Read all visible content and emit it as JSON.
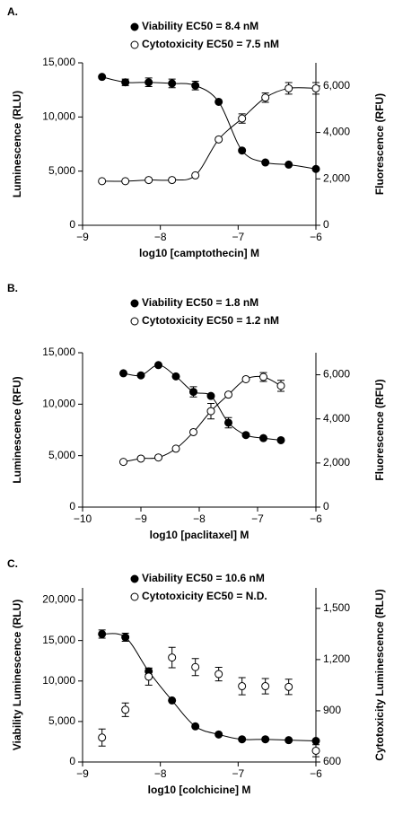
{
  "chart_data": [
    {
      "type": "scatter",
      "panel": "A.",
      "xlabel": "log10 [camptothecin] M",
      "ylabel": "Luminescence (RLU)",
      "y2label": "Fluorescence (RFU)",
      "x": [
        -8.75,
        -8.45,
        -8.15,
        -7.85,
        -7.55,
        -7.25,
        -6.95,
        -6.65,
        -6.35,
        -6.0
      ],
      "xlim": [
        -9,
        -6
      ],
      "xticks": [
        {
          "value": -9,
          "label": "−9"
        },
        {
          "value": -8,
          "label": "−8"
        },
        {
          "value": -7,
          "label": "−7"
        },
        {
          "value": -6,
          "label": "−6"
        }
      ],
      "ylim": [
        0,
        15000
      ],
      "yticks": [
        0,
        {
          "value": 5000,
          "label": "5,000"
        },
        {
          "value": 10000,
          "label": "10,000"
        },
        {
          "value": 15000,
          "label": "15,000"
        }
      ],
      "y2lim": [
        0,
        7000
      ],
      "y2ticks": [
        0,
        {
          "value": 2000,
          "label": "2,000"
        },
        {
          "value": 4000,
          "label": "4,000"
        },
        {
          "value": 6000,
          "label": "6,000"
        }
      ],
      "series": [
        {
          "name": "Viability EC50 = 8.4 nM",
          "color": "#000000",
          "marker": "filled",
          "fit": true,
          "values": [
            13700,
            13200,
            13200,
            13100,
            12900,
            11400,
            6900,
            5800,
            5600,
            5200
          ],
          "errors": [
            null,
            300,
            400,
            400,
            400,
            null,
            null,
            null,
            null,
            null
          ]
        },
        {
          "name": "Cytotoxicity EC50 = 7.5 nM",
          "color": "#000000",
          "marker": "open",
          "fit": true,
          "axis": "y2",
          "values": [
            1900,
            1900,
            1950,
            1950,
            2150,
            3700,
            4600,
            5500,
            5900,
            5900
          ],
          "errors": [
            null,
            null,
            null,
            null,
            null,
            null,
            200,
            200,
            250,
            250
          ]
        }
      ]
    },
    {
      "type": "scatter",
      "panel": "B.",
      "xlabel": "log10 [paclitaxel] M",
      "ylabel": "Luminescence (RFU)",
      "y2label": "Fluorescence (RFU)",
      "x": [
        -9.3,
        -9.0,
        -8.7,
        -8.4,
        -8.1,
        -7.8,
        -7.5,
        -7.2,
        -6.9,
        -6.6
      ],
      "xlim": [
        -10,
        -6
      ],
      "xticks": [
        {
          "value": -10,
          "label": "−10"
        },
        {
          "value": -9,
          "label": "−9"
        },
        {
          "value": -8,
          "label": "−8"
        },
        {
          "value": -7,
          "label": "−7"
        },
        {
          "value": -6,
          "label": "−6"
        }
      ],
      "ylim": [
        0,
        15000
      ],
      "yticks": [
        0,
        {
          "value": 5000,
          "label": "5,000"
        },
        {
          "value": 10000,
          "label": "10,000"
        },
        {
          "value": 15000,
          "label": "15,000"
        }
      ],
      "y2lim": [
        0,
        7000
      ],
      "y2ticks": [
        0,
        {
          "value": 2000,
          "label": "2,000"
        },
        {
          "value": 4000,
          "label": "4,000"
        },
        {
          "value": 6000,
          "label": "6,000"
        }
      ],
      "series": [
        {
          "name": "Viability EC50 = 1.8 nM",
          "color": "#000000",
          "marker": "filled",
          "fit": true,
          "values": [
            13000,
            12800,
            13800,
            12700,
            11200,
            10800,
            8200,
            7000,
            6700,
            6500
          ],
          "errors": [
            null,
            null,
            null,
            null,
            500,
            null,
            500,
            null,
            null,
            null
          ]
        },
        {
          "name": "Cytotoxicity EC50 = 1.2 nM",
          "color": "#000000",
          "marker": "open",
          "fit": true,
          "axis": "y2",
          "values": [
            2050,
            2200,
            2250,
            2650,
            3400,
            4350,
            5100,
            5800,
            5900,
            5500
          ],
          "errors": [
            null,
            null,
            null,
            null,
            null,
            350,
            null,
            null,
            200,
            250
          ]
        }
      ]
    },
    {
      "type": "scatter",
      "panel": "C.",
      "xlabel": "log10 [colchicine] M",
      "ylabel": "Viability Luminescence (RLU)",
      "y2label": "Cytotoxicity Luminescence (RLU)",
      "x": [
        -8.75,
        -8.45,
        -8.15,
        -7.85,
        -7.55,
        -7.25,
        -6.95,
        -6.65,
        -6.35,
        -6.0
      ],
      "xlim": [
        -9,
        -6
      ],
      "xticks": [
        {
          "value": -9,
          "label": "−9"
        },
        {
          "value": -8,
          "label": "−8"
        },
        {
          "value": -7,
          "label": "−7"
        },
        {
          "value": -6,
          "label": "−6"
        }
      ],
      "ylim": [
        0,
        21500
      ],
      "yticks": [
        0,
        {
          "value": 5000,
          "label": "5,000"
        },
        {
          "value": 10000,
          "label": "10,000"
        },
        {
          "value": 15000,
          "label": "15,000"
        },
        {
          "value": 20000,
          "label": "20,000"
        }
      ],
      "y2lim": [
        600,
        1620
      ],
      "y2ticks": [
        600,
        900,
        {
          "value": 1200,
          "label": "1,200"
        },
        {
          "value": 1500,
          "label": "1,500"
        }
      ],
      "series": [
        {
          "name": "Viability EC50 = 10.6 nM",
          "color": "#000000",
          "marker": "filled",
          "fit": true,
          "values": [
            15800,
            15400,
            11200,
            7600,
            4400,
            3400,
            2800,
            2800,
            2700,
            2600
          ],
          "errors": [
            500,
            500,
            400,
            null,
            null,
            null,
            null,
            null,
            null,
            null
          ]
        },
        {
          "name": "Cytotoxicity EC50 = N.D.",
          "color": "#000000",
          "marker": "open",
          "fit": false,
          "axis": "y2",
          "values": [
            743,
            906,
            1100,
            1212,
            1156,
            1115,
            1044,
            1044,
            1040,
            666
          ],
          "errors": [
            50,
            40,
            50,
            60,
            50,
            40,
            50,
            45,
            45,
            35
          ]
        }
      ]
    }
  ]
}
